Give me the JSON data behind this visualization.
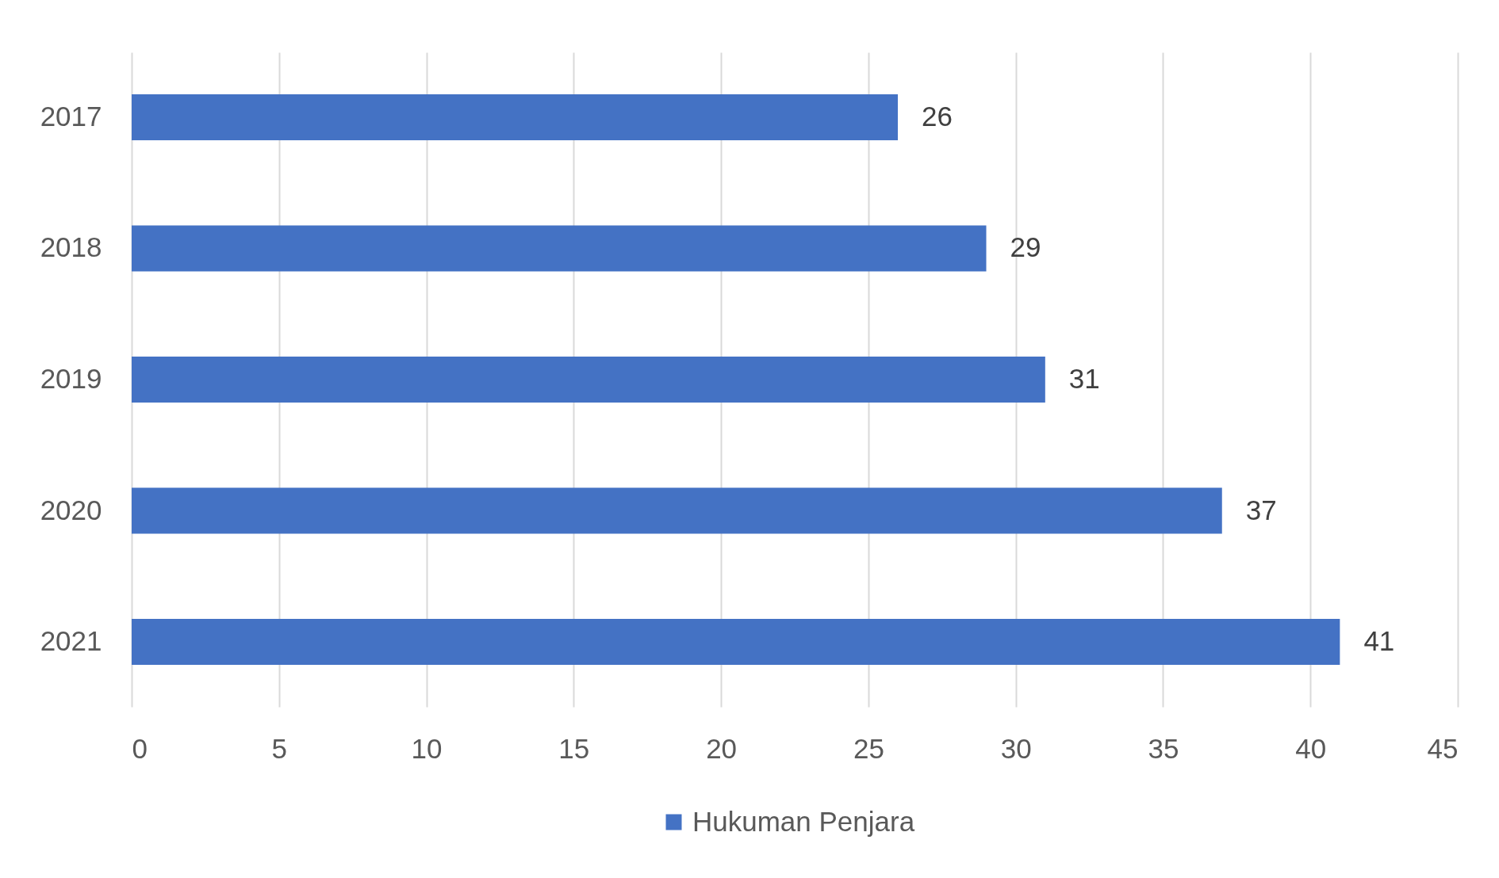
{
  "chart_data": {
    "type": "bar",
    "orientation": "horizontal",
    "categories": [
      "2017",
      "2018",
      "2019",
      "2020",
      "2021"
    ],
    "series": [
      {
        "name": "Hukuman Penjara",
        "color": "#4472c4",
        "values": [
          26,
          29,
          31,
          37,
          41
        ]
      }
    ],
    "xlim": [
      0,
      45
    ],
    "xticks": [
      0,
      5,
      10,
      15,
      20,
      25,
      30,
      35,
      40,
      45
    ],
    "grid": "x",
    "legend": "bottom",
    "data_labels": true
  }
}
